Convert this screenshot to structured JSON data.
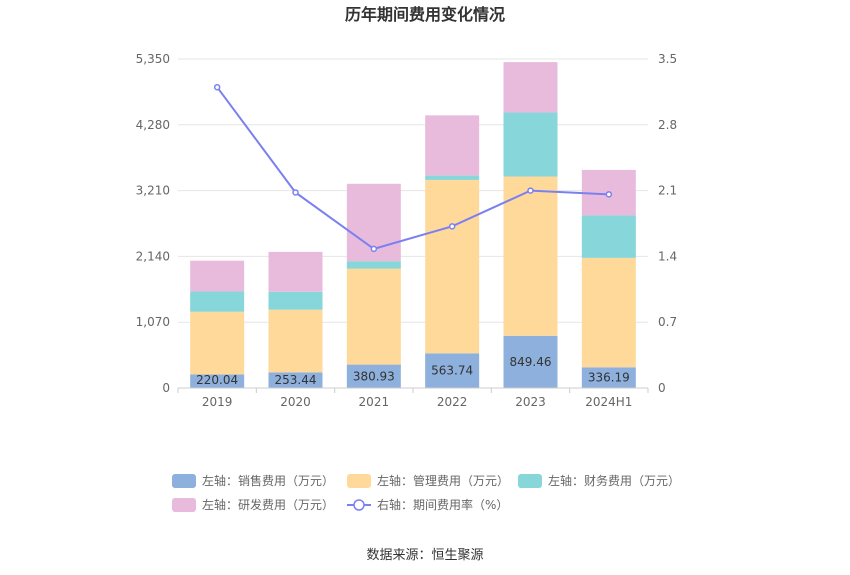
{
  "chart_data": {
    "type": "bar",
    "title": "历年期间费用变化情况",
    "categories": [
      "2019",
      "2020",
      "2021",
      "2022",
      "2023",
      "2024H1"
    ],
    "stacked": true,
    "y_left": {
      "ticks": [
        "0",
        "1,070",
        "2,140",
        "3,210",
        "4,280",
        "5,350"
      ],
      "min": 0,
      "max": 5350
    },
    "y_right": {
      "ticks": [
        "0",
        "0.7",
        "1.4",
        "2.1",
        "2.8",
        "3.5"
      ],
      "min": 0,
      "max": 3.5
    },
    "series": [
      {
        "name": "左轴：销售费用（万元）",
        "type": "bar",
        "axis": "left",
        "color": "#8eb0dd",
        "values": [
          220.04,
          253.44,
          380.93,
          563.74,
          849.46,
          336.19
        ],
        "labels": [
          "220.04",
          "253.44",
          "380.93",
          "563.74",
          "849.46",
          "336.19"
        ]
      },
      {
        "name": "左轴：管理费用（万元）",
        "type": "bar",
        "axis": "left",
        "color": "#ffd99a",
        "values": [
          1020,
          1020,
          1560,
          2820,
          2590,
          1780
        ]
      },
      {
        "name": "左轴：财务费用（万元）",
        "type": "bar",
        "axis": "left",
        "color": "#86d6da",
        "values": [
          330,
          290,
          120,
          70,
          1040,
          690
        ]
      },
      {
        "name": "左轴：研发费用（万元）",
        "type": "bar",
        "axis": "left",
        "color": "#e8bbdc",
        "values": [
          500,
          650,
          1260,
          980,
          820,
          740
        ]
      },
      {
        "name": "右轴：期间费用率（%）",
        "type": "line",
        "axis": "right",
        "color": "#7b80f0",
        "values": [
          3.2,
          2.08,
          1.48,
          1.72,
          2.1,
          2.06
        ]
      }
    ],
    "grid": true,
    "legend_position": "bottom"
  },
  "source": "数据来源：恒生聚源"
}
